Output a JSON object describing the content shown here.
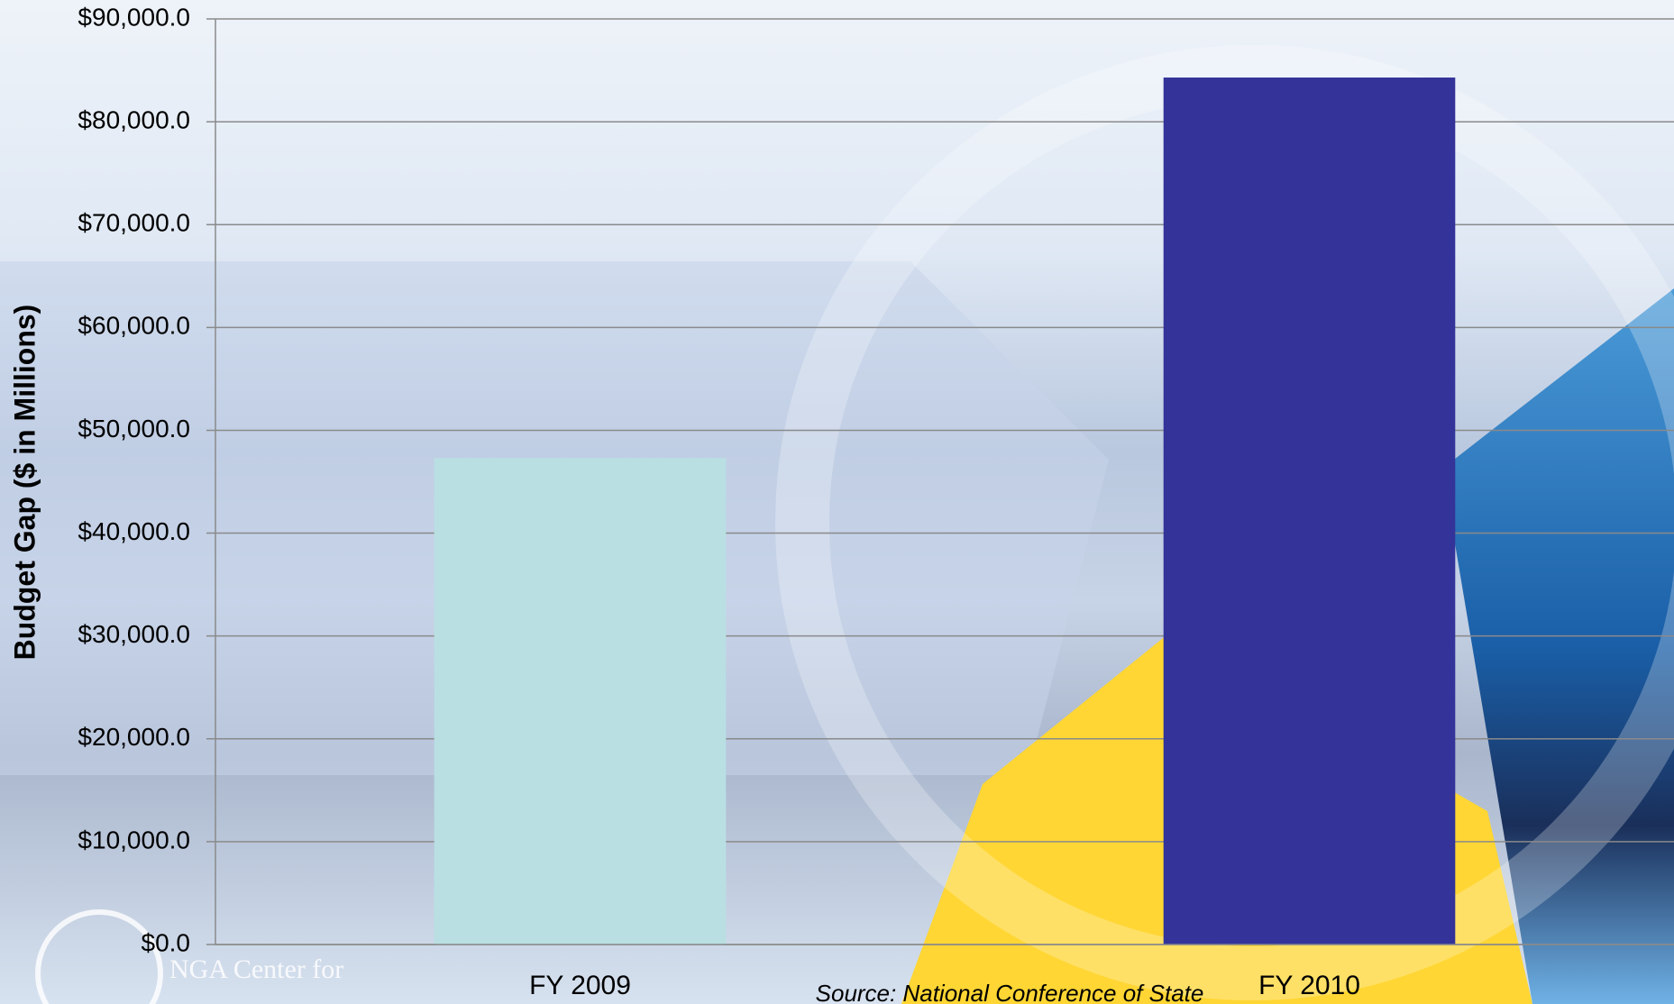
{
  "chart_data": {
    "type": "bar",
    "y_label": "Budget Gap ($ in Millions)",
    "categories": [
      "FY 2009",
      "FY 2010"
    ],
    "values": [
      47300,
      84300
    ],
    "colors": [
      "#b9dfe2",
      "#333399"
    ],
    "ylim": [
      0,
      90000
    ],
    "yticks": [
      {
        "value": 0,
        "label": "$0.0"
      },
      {
        "value": 10000,
        "label": "$10,000.0"
      },
      {
        "value": 20000,
        "label": "$20,000.0"
      },
      {
        "value": 30000,
        "label": "$30,000.0"
      },
      {
        "value": 40000,
        "label": "$40,000.0"
      },
      {
        "value": 50000,
        "label": "$50,000.0"
      },
      {
        "value": 60000,
        "label": "$60,000.0"
      },
      {
        "value": 70000,
        "label": "$70,000.0"
      },
      {
        "value": 80000,
        "label": "$80,000.0"
      },
      {
        "value": 90000,
        "label": "$90,000.0"
      }
    ],
    "grid": true,
    "source": "Source: National Conference of State",
    "logo_text": "NGA Center for"
  }
}
